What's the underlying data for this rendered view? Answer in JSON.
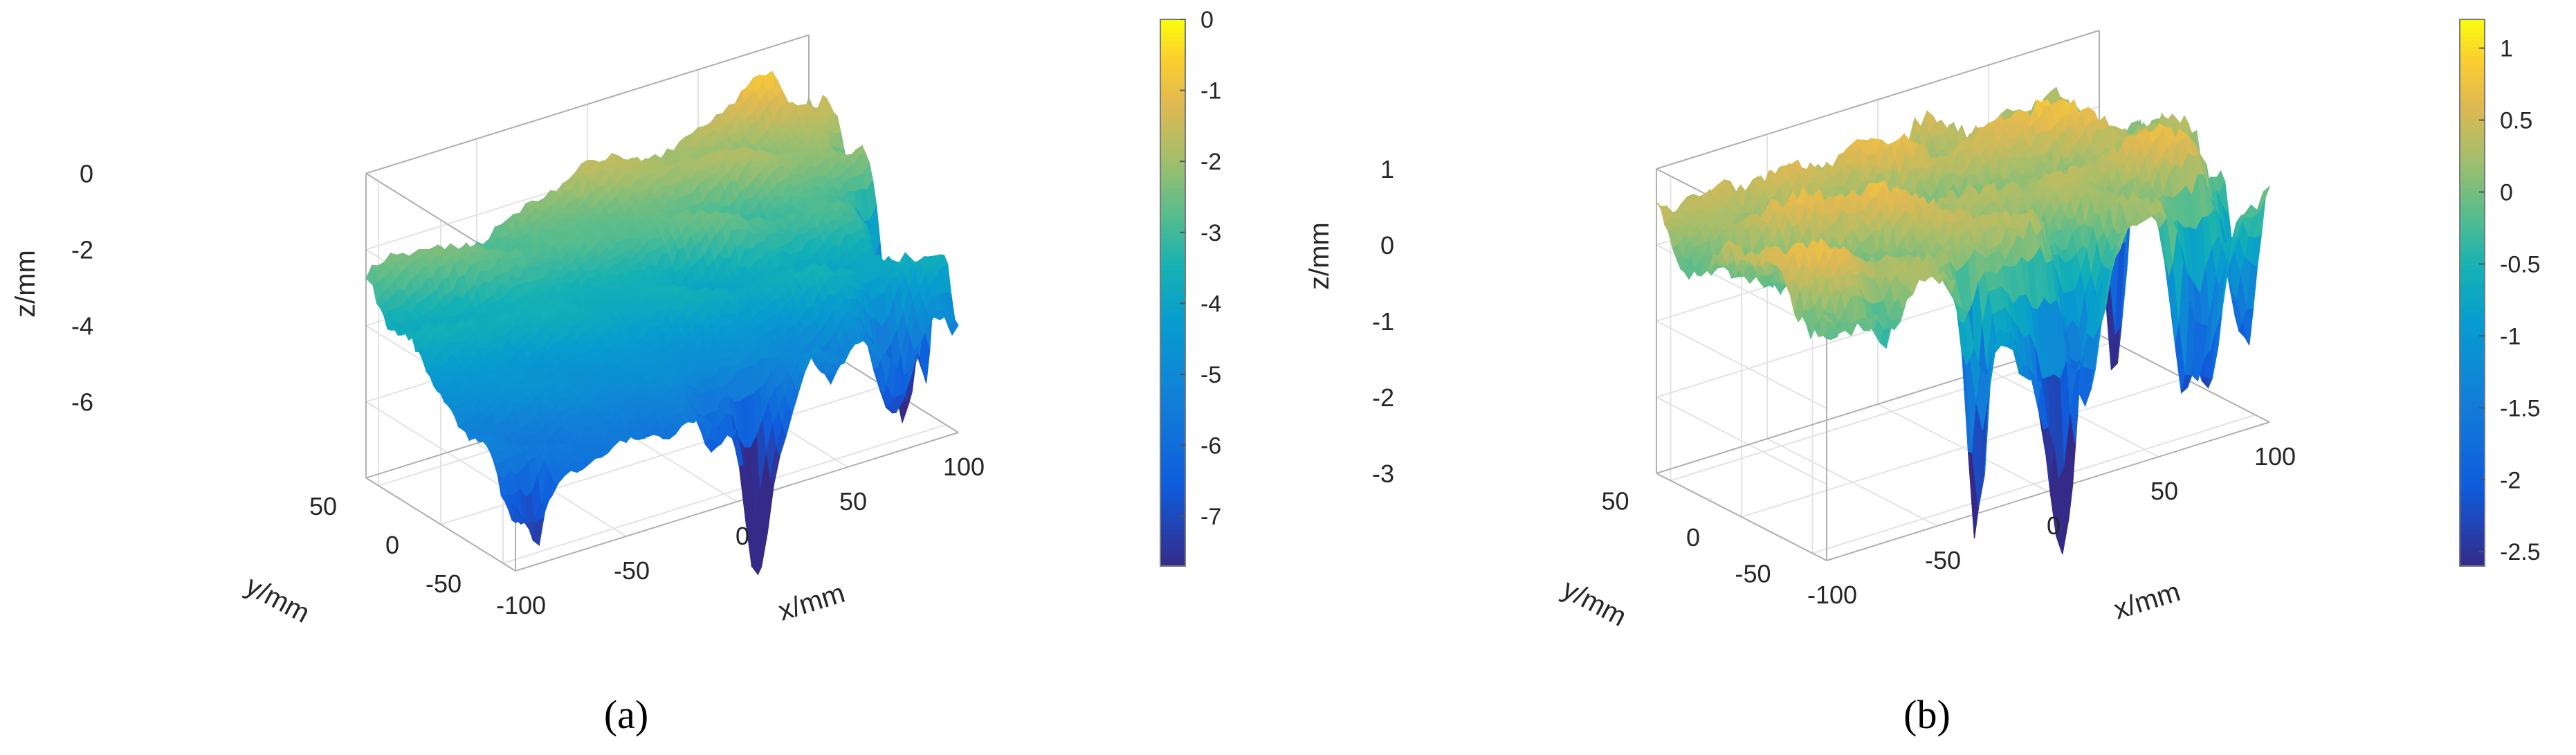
{
  "chart_data": [
    {
      "type": "surface3d",
      "panel": "a",
      "caption": "(a)",
      "title": "",
      "xlabel": "x/mm",
      "ylabel": "y/mm",
      "zlabel": "z/mm",
      "x_ticks": [
        "-100",
        "-50",
        "0",
        "50",
        "100"
      ],
      "y_ticks": [
        "-50",
        "0",
        "50"
      ],
      "z_ticks": [
        "0",
        "-2",
        "-4",
        "-6"
      ],
      "xlim": [
        -100,
        100
      ],
      "ylim": [
        -60,
        60
      ],
      "zlim": [
        -8,
        0
      ],
      "colorbar_ticks": [
        "0",
        "-1",
        "-2",
        "-3",
        "-4",
        "-5",
        "-6",
        "-7"
      ],
      "colorbar_range": [
        -7.7,
        0
      ],
      "surface": {
        "description": "tilted rough surface, low along front-left edge, high along back-right edge",
        "plane": {
          "z0": -3.6,
          "dz_dx": 0.009,
          "dz_dy": 0.028
        },
        "roughness_mm": 0.35,
        "deepest_pit_mm": -7.6
      },
      "grid": true
    },
    {
      "type": "surface3d",
      "panel": "b",
      "caption": "(b)",
      "title": "",
      "xlabel": "x/mm",
      "ylabel": "y/mm",
      "zlabel": "z/mm",
      "x_ticks": [
        "-100",
        "-50",
        "0",
        "50",
        "100"
      ],
      "y_ticks": [
        "-50",
        "0",
        "50"
      ],
      "z_ticks": [
        "1",
        "0",
        "-1",
        "-2",
        "-3"
      ],
      "xlim": [
        -100,
        100
      ],
      "ylim": [
        -60,
        60
      ],
      "zlim": [
        -3,
        1
      ],
      "colorbar_ticks": [
        "1",
        "0.5",
        "0",
        "-0.5",
        "-1",
        "-1.5",
        "-2",
        "-2.5"
      ],
      "colorbar_range": [
        -2.6,
        1.2
      ],
      "surface": {
        "description": "detrended rough surface, near zero with sharp downward pits on the front edges",
        "plane": {
          "z0": 0.25,
          "dz_dx": 0.0,
          "dz_dy": 0.0
        },
        "roughness_mm": 0.35,
        "deepest_pit_mm": -2.5
      },
      "grid": true
    }
  ]
}
